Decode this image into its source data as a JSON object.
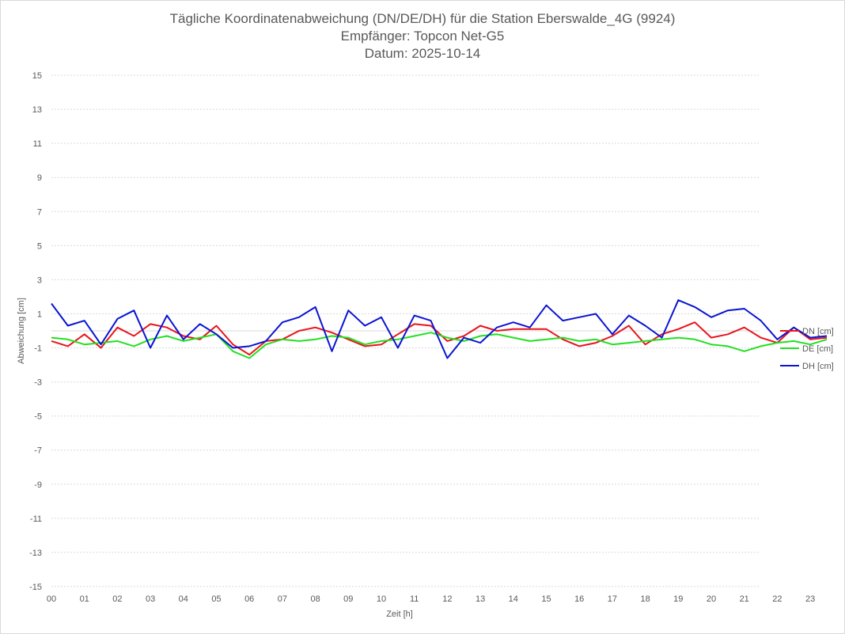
{
  "title_lines": [
    "Tägliche Koordinatenabweichung (DN/DE/DH) für die Station Eberswalde_4G (9924)",
    "Empfänger: Topcon Net-G5",
    "Datum: 2025-10-14"
  ],
  "chart_data": {
    "type": "line",
    "title": "Tägliche Koordinatenabweichung (DN/DE/DH) für die Station Eberswalde_4G (9924)",
    "subtitle": [
      "Empfänger: Topcon Net-G5",
      "Datum: 2025-10-14"
    ],
    "xlabel": "Zeit [h]",
    "ylabel": "Abweichung [cm]",
    "xlim": [
      0,
      24
    ],
    "ylim": [
      -15,
      15
    ],
    "x_ticks": [
      "00",
      "01",
      "02",
      "03",
      "04",
      "05",
      "06",
      "07",
      "08",
      "09",
      "10",
      "11",
      "12",
      "13",
      "14",
      "15",
      "16",
      "17",
      "18",
      "19",
      "20",
      "21",
      "22",
      "23"
    ],
    "y_ticks": [
      15,
      13,
      11,
      9,
      7,
      5,
      3,
      1,
      -1,
      -3,
      -5,
      -7,
      -9,
      -11,
      -13,
      -15
    ],
    "y_tick_labels": [
      "15",
      "13",
      "11",
      "9",
      "7",
      "5",
      "3",
      "1",
      "-1",
      "-3",
      "-5",
      "-7",
      "-9",
      "-11",
      "-13",
      "-15"
    ],
    "grid": "horizontal-dotted",
    "legend_position": "right",
    "x_unit": "hours",
    "series": [
      {
        "name": "DN [cm]",
        "color": "#e8141c",
        "x": [
          0,
          0.5,
          1,
          1.5,
          2,
          2.5,
          3,
          3.5,
          4,
          4.5,
          5,
          5.5,
          6,
          6.5,
          7,
          7.5,
          8,
          8.5,
          9,
          9.5,
          10,
          10.5,
          11,
          11.5,
          12,
          12.5,
          13,
          13.5,
          14,
          14.5,
          15,
          15.5,
          16,
          16.5,
          17,
          17.5,
          18,
          18.5,
          19,
          19.5,
          20,
          20.5,
          21,
          21.5,
          22,
          22.5,
          23,
          23.5
        ],
        "values": [
          -0.6,
          -0.9,
          -0.2,
          -1.0,
          0.2,
          -0.3,
          0.4,
          0.2,
          -0.3,
          -0.5,
          0.3,
          -0.8,
          -1.4,
          -0.6,
          -0.5,
          0.0,
          0.2,
          -0.1,
          -0.5,
          -0.9,
          -0.8,
          -0.2,
          0.4,
          0.3,
          -0.6,
          -0.3,
          0.3,
          0.0,
          0.1,
          0.1,
          0.1,
          -0.5,
          -0.9,
          -0.7,
          -0.3,
          0.3,
          -0.8,
          -0.2,
          0.1,
          0.5,
          -0.4,
          -0.2,
          0.2,
          -0.4,
          -0.7,
          0.2,
          -0.5,
          -0.4
        ]
      },
      {
        "name": "DE [cm]",
        "color": "#22e022",
        "x": [
          0,
          0.5,
          1,
          1.5,
          2,
          2.5,
          3,
          3.5,
          4,
          4.5,
          5,
          5.5,
          6,
          6.5,
          7,
          7.5,
          8,
          8.5,
          9,
          9.5,
          10,
          10.5,
          11,
          11.5,
          12,
          12.5,
          13,
          13.5,
          14,
          14.5,
          15,
          15.5,
          16,
          16.5,
          17,
          17.5,
          18,
          18.5,
          19,
          19.5,
          20,
          20.5,
          21,
          21.5,
          22,
          22.5,
          23,
          23.5
        ],
        "values": [
          -0.4,
          -0.5,
          -0.8,
          -0.7,
          -0.6,
          -0.9,
          -0.5,
          -0.3,
          -0.6,
          -0.4,
          -0.2,
          -1.2,
          -1.6,
          -0.8,
          -0.5,
          -0.6,
          -0.5,
          -0.3,
          -0.4,
          -0.8,
          -0.6,
          -0.5,
          -0.3,
          -0.1,
          -0.4,
          -0.6,
          -0.3,
          -0.2,
          -0.4,
          -0.6,
          -0.5,
          -0.4,
          -0.6,
          -0.5,
          -0.8,
          -0.7,
          -0.6,
          -0.5,
          -0.4,
          -0.5,
          -0.8,
          -0.9,
          -1.2,
          -0.9,
          -0.7,
          -0.6,
          -0.8,
          -0.5
        ]
      },
      {
        "name": "DH [cm]",
        "color": "#0a14d2",
        "x": [
          0,
          0.5,
          1,
          1.5,
          2,
          2.5,
          3,
          3.5,
          4,
          4.5,
          5,
          5.5,
          6,
          6.5,
          7,
          7.5,
          8,
          8.5,
          9,
          9.5,
          10,
          10.5,
          11,
          11.5,
          12,
          12.5,
          13,
          13.5,
          14,
          14.5,
          15,
          15.5,
          16,
          16.5,
          17,
          17.5,
          18,
          18.5,
          19,
          19.5,
          20,
          20.5,
          21,
          21.5,
          22,
          22.5,
          23,
          23.5
        ],
        "values": [
          1.6,
          0.3,
          0.6,
          -0.8,
          0.7,
          1.2,
          -1.0,
          0.9,
          -0.5,
          0.4,
          -0.2,
          -1.0,
          -0.9,
          -0.6,
          0.5,
          0.8,
          1.4,
          -1.2,
          1.2,
          0.3,
          0.8,
          -1.0,
          0.9,
          0.6,
          -1.6,
          -0.4,
          -0.7,
          0.2,
          0.5,
          0.2,
          1.5,
          0.6,
          0.8,
          1.0,
          -0.2,
          0.9,
          0.3,
          -0.4,
          1.8,
          1.4,
          0.8,
          1.2,
          1.3,
          0.6,
          -0.5,
          0.2,
          -0.4,
          -0.3
        ]
      }
    ]
  }
}
